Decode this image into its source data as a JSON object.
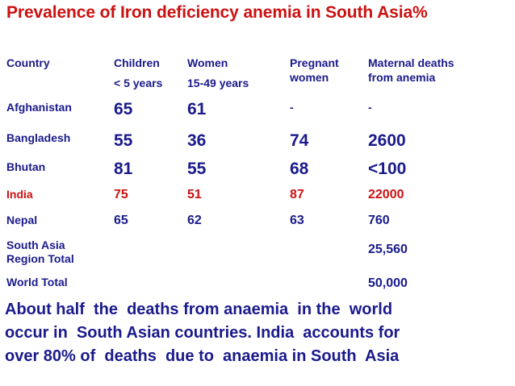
{
  "title": "Prevalence of Iron deficiency anemia in South Asia%",
  "headers": {
    "country": "Country",
    "children_1": "Children",
    "children_2": "< 5 years",
    "women_1": "Women",
    "women_2": "15-49 years",
    "pregnant_1": "Pregnant",
    "pregnant_2": "women",
    "deaths_1": "Maternal deaths",
    "deaths_2": "from anemia"
  },
  "rows": [
    {
      "country": "Afghanistan",
      "children": "65",
      "women": "61",
      "pregnant": "-",
      "deaths": "-"
    },
    {
      "country": "Bangladesh",
      "children": "55",
      "women": "36",
      "pregnant": "74",
      "deaths": "2600"
    },
    {
      "country": "Bhutan",
      "children": "81",
      "women": "55",
      "pregnant": "68",
      "deaths": "<100"
    },
    {
      "country": "India",
      "children": "75",
      "women": "51",
      "pregnant": "87",
      "deaths": "22000"
    },
    {
      "country": "Nepal",
      "children": "65",
      "women": "62",
      "pregnant": "63",
      "deaths": "760"
    }
  ],
  "totals": {
    "south_asia_1": "South Asia",
    "south_asia_2": "Region Total",
    "south_asia_deaths": "25,560",
    "world": "World Total",
    "world_deaths": "50,000"
  },
  "footer": {
    "line1": "About half  the  deaths from anaemia  in the  world",
    "line2": "occur in  South Asian countries. India  accounts for",
    "line3": "over 80% of  deaths  due to  anaemia in South  Asia"
  },
  "colors": {
    "title_red": "#cc1111",
    "text_blue": "#1a1a8c",
    "highlight_red": "#cc1111"
  }
}
